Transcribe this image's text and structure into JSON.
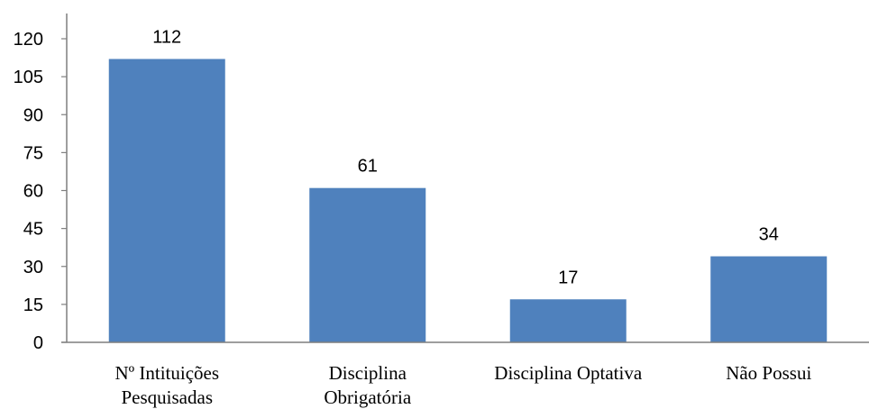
{
  "chart_data": {
    "type": "bar",
    "categories": [
      [
        "Nº Intituições",
        "Pesquisadas"
      ],
      [
        "Disciplina",
        "Obrigatória"
      ],
      [
        "Disciplina Optativa"
      ],
      [
        "Não Possui"
      ]
    ],
    "values": [
      112,
      61,
      17,
      34
    ],
    "data_labels": [
      "112",
      "61",
      "17",
      "34"
    ],
    "y_ticks": [
      "0",
      "15",
      "30",
      "45",
      "60",
      "75",
      "90",
      "105",
      "120"
    ],
    "ylim": [
      0,
      120
    ],
    "grid": false,
    "legend": "none",
    "bar_color": "#4f81bd",
    "axis_color": "#7f7f7f"
  }
}
